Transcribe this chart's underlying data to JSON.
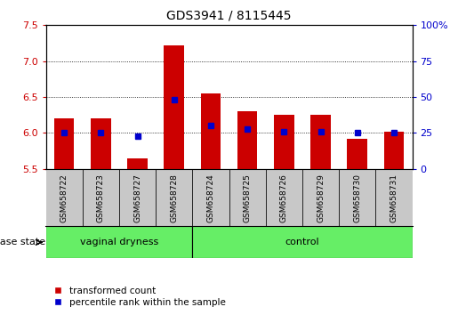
{
  "title": "GDS3941 / 8115445",
  "samples": [
    "GSM658722",
    "GSM658723",
    "GSM658727",
    "GSM658728",
    "GSM658724",
    "GSM658725",
    "GSM658726",
    "GSM658729",
    "GSM658730",
    "GSM658731"
  ],
  "transformed_count": [
    6.2,
    6.2,
    5.65,
    7.22,
    6.55,
    6.3,
    6.25,
    6.25,
    5.92,
    6.02
  ],
  "percentile_rank": [
    25,
    25,
    23,
    48,
    30,
    28,
    26,
    26,
    25,
    25
  ],
  "ylim_left": [
    5.5,
    7.5
  ],
  "ylim_right": [
    0,
    100
  ],
  "yticks_left": [
    5.5,
    6.0,
    6.5,
    7.0,
    7.5
  ],
  "yticks_right": [
    0,
    25,
    50,
    75,
    100
  ],
  "ytick_right_labels": [
    "0",
    "25",
    "50",
    "75",
    "100%"
  ],
  "bar_color": "#CC0000",
  "marker_color": "#0000CC",
  "bar_bottom": 5.5,
  "tick_label_color_left": "#CC0000",
  "tick_label_color_right": "#0000CC",
  "legend_items": [
    "transformed count",
    "percentile rank within the sample"
  ],
  "disease_state_label": "disease state",
  "sample_bg_color": "#C8C8C8",
  "green_color": "#66EE66",
  "n_vaginal": 4,
  "n_control": 6,
  "group_labels": [
    "vaginal dryness",
    "control"
  ],
  "grid_yticks": [
    6.0,
    6.5,
    7.0
  ]
}
